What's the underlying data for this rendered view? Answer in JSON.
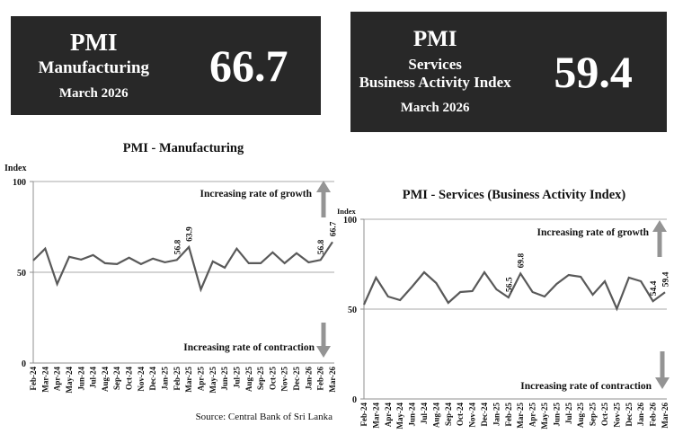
{
  "cards": [
    {
      "title": "PMI",
      "subtitle": "Manufacturing",
      "subtitle2": "",
      "date": "March 2026",
      "value": "66.7"
    },
    {
      "title": "PMI",
      "subtitle": "Services",
      "subtitle2": "Business Activity Index",
      "date": "March 2026",
      "value": "59.4"
    }
  ],
  "colors": {
    "card_background": "#282828",
    "card_text": "#ffffff",
    "line": "#595959",
    "grid": "#a8a8a8",
    "axis": "#8f8f8f",
    "arrow": "#949494"
  },
  "source_note": "Source: Central Bank of Sri Lanka",
  "chart_data": [
    {
      "type": "line",
      "title": "PMI - Manufacturing",
      "ylabel": "Index",
      "ylim": [
        0,
        100
      ],
      "yticks": [
        0,
        50,
        100
      ],
      "legend": "none",
      "grid": "horizontal at 50 and 100",
      "categories": [
        "Feb-24",
        "Mar-24",
        "Apr-24",
        "May-24",
        "Jun-24",
        "Jul-24",
        "Aug-24",
        "Sep-24",
        "Oct-24",
        "Nov-24",
        "Dec-24",
        "Jan-25",
        "Feb-25",
        "Mar-25",
        "Apr-25",
        "May-25",
        "Jun-25",
        "Jul-25",
        "Aug-25",
        "Sep-25",
        "Oct-25",
        "Nov-25",
        "Dec-25",
        "Jan-26",
        "Feb-26",
        "Mar-26"
      ],
      "values": [
        56.5,
        63,
        43.5,
        58.5,
        57,
        59.5,
        55,
        54.5,
        58,
        54.5,
        57.5,
        55.5,
        56.8,
        63.9,
        40.5,
        56,
        52.5,
        63,
        55,
        55,
        61,
        55,
        60.5,
        55.5,
        56.8,
        66.7
      ],
      "point_labels": {
        "12": "56.8",
        "13": "63.9",
        "24": "56.8",
        "25": "66.7"
      },
      "annotation_growth": "Increasing rate of growth",
      "annotation_contraction": "Increasing rate of contraction",
      "source": "Source: Central Bank of Sri Lanka"
    },
    {
      "type": "line",
      "title": "PMI - Services (Business Activity Index)",
      "ylabel": "Index",
      "ylim": [
        0,
        100
      ],
      "yticks": [
        0,
        50,
        100
      ],
      "legend": "none",
      "grid": "horizontal at 50 and 100",
      "categories": [
        "Feb-24",
        "Mar-24",
        "Apr-24",
        "May-24",
        "Jun-24",
        "Jul-24",
        "Aug-24",
        "Sep-24",
        "Oct-24",
        "Nov-24",
        "Dec-24",
        "Jan-25",
        "Feb-25",
        "Mar-25",
        "Apr-25",
        "May-25",
        "Jun-25",
        "Jul-25",
        "Aug-25",
        "Sep-25",
        "Oct-25",
        "Nov-25",
        "Dec-25",
        "Jan-26",
        "Feb-26",
        "Mar-26"
      ],
      "values": [
        52.5,
        67.5,
        57,
        55,
        62.5,
        70.5,
        64.5,
        53.5,
        59.5,
        60,
        70.5,
        61,
        56.5,
        69.8,
        59.5,
        57,
        64,
        69,
        68,
        58,
        65.5,
        50.2,
        67.5,
        65.5,
        54.4,
        59.4
      ],
      "point_labels": {
        "12": "56.5",
        "13": "69.8",
        "24": "54.4",
        "25": "59.4"
      },
      "annotation_growth": "Increasing rate of growth",
      "annotation_contraction": "Increasing rate of contraction",
      "source": ""
    }
  ]
}
